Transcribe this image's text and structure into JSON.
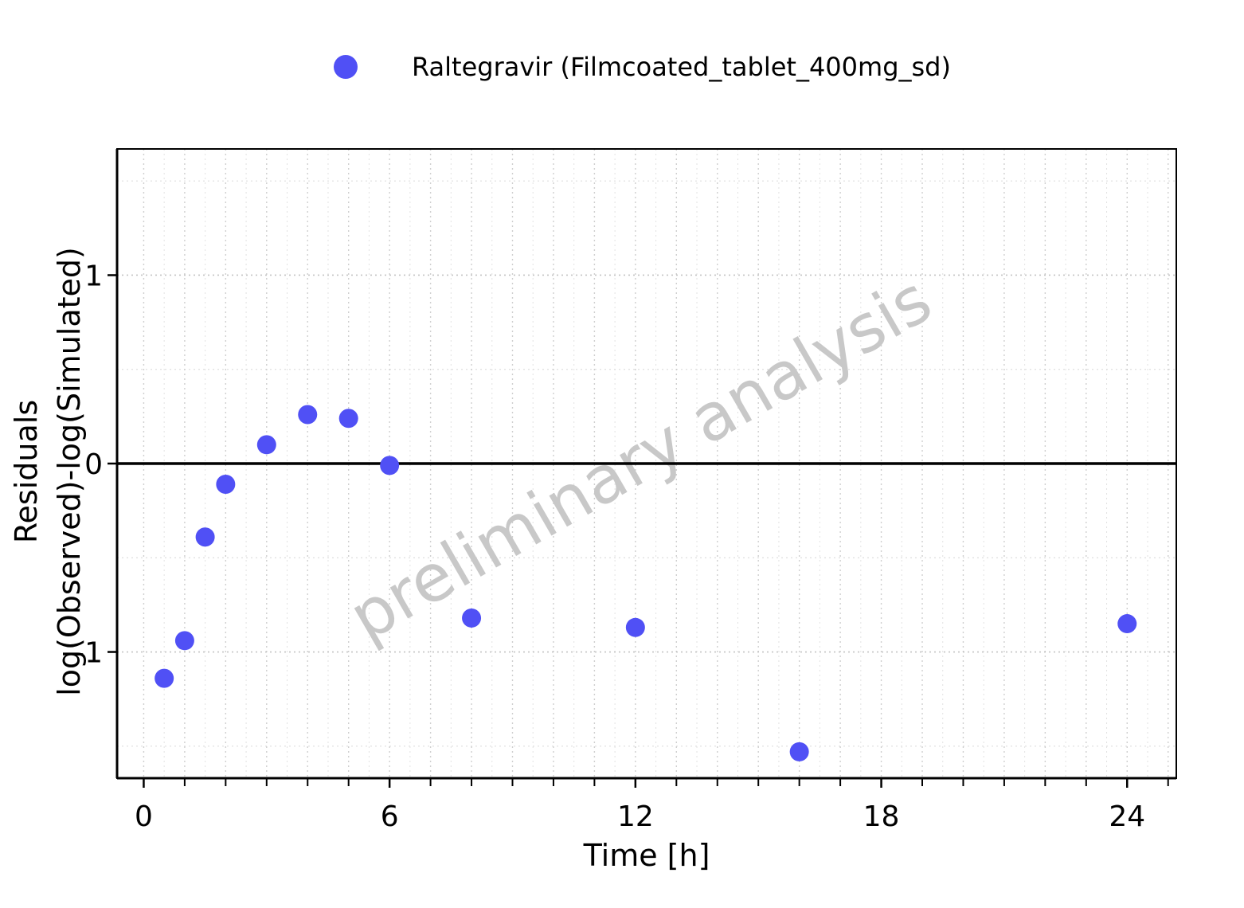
{
  "chart_data": {
    "type": "scatter",
    "title": "",
    "xlabel": "Time [h]",
    "ylabel_line1": "Residuals",
    "ylabel_line2": "log(Observed)-log(Simulated)",
    "watermark": "preliminary analysis",
    "xlim": [
      -0.65,
      25.2
    ],
    "ylim": [
      -1.67,
      1.67
    ],
    "x_ticks": [
      0,
      6,
      12,
      18,
      24
    ],
    "y_ticks": [
      -1,
      0,
      1
    ],
    "x_minor_ticks": [
      1,
      2,
      3,
      4,
      5,
      7,
      8,
      9,
      10,
      11,
      13,
      14,
      15,
      16,
      17,
      19,
      20,
      21,
      22,
      23,
      25
    ],
    "reference_line_y": 0,
    "grid": true,
    "legend_position": "top",
    "series": [
      {
        "name": "Raltegravir (Filmcoated_tablet_400mg_sd)",
        "color": "#5050f5",
        "points": [
          {
            "x": 0.5,
            "y": -1.14
          },
          {
            "x": 1.0,
            "y": -0.94
          },
          {
            "x": 1.5,
            "y": -0.39
          },
          {
            "x": 2.0,
            "y": -0.11
          },
          {
            "x": 3.0,
            "y": 0.1
          },
          {
            "x": 4.0,
            "y": 0.26
          },
          {
            "x": 5.0,
            "y": 0.24
          },
          {
            "x": 6.0,
            "y": -0.01
          },
          {
            "x": 8.0,
            "y": -0.82
          },
          {
            "x": 12.0,
            "y": -0.87
          },
          {
            "x": 16.0,
            "y": -1.53
          },
          {
            "x": 24.0,
            "y": -0.85
          }
        ]
      }
    ]
  }
}
